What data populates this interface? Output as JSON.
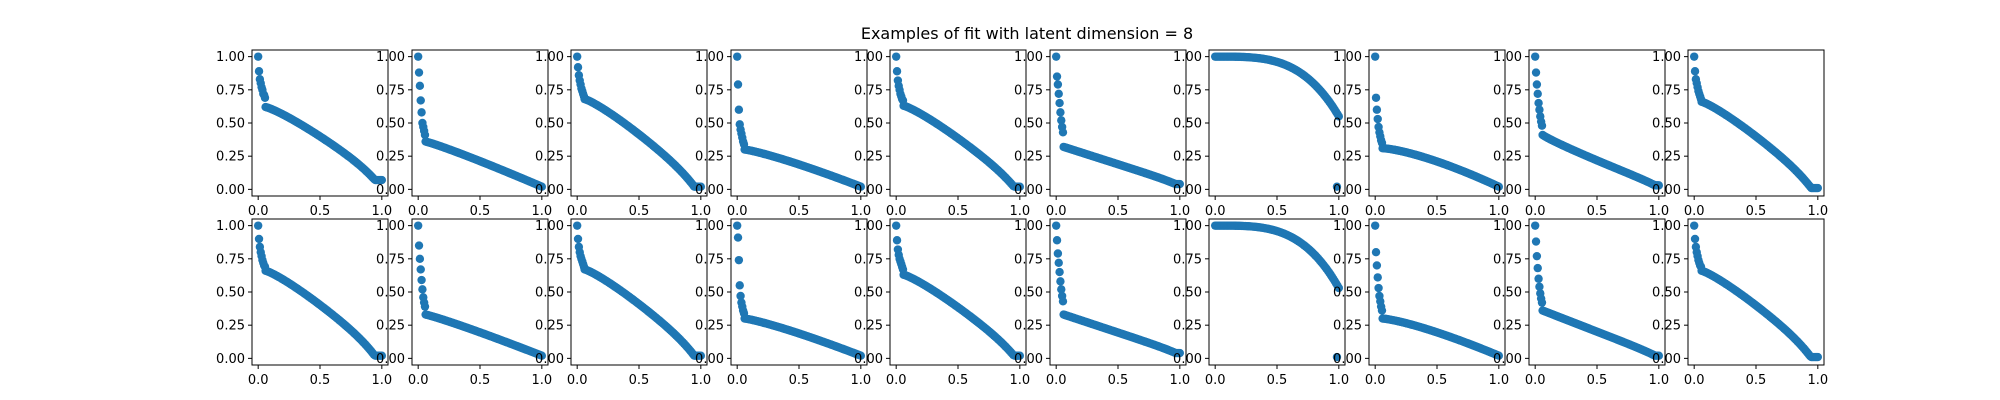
{
  "figure": {
    "title": "Examples of fit with latent dimension = 8",
    "marker_color": "#1f77b4",
    "background": "#ffffff"
  },
  "chart_data": {
    "type": "scatter",
    "layout": {
      "rows": 2,
      "cols": 10
    },
    "xlim": [
      -0.05,
      1.05
    ],
    "ylim": [
      -0.05,
      1.05
    ],
    "xticks": [
      0.0,
      0.5,
      1.0
    ],
    "xtick_labels": [
      "0.0",
      "0.5",
      "1.0"
    ],
    "yticks": [
      0.0,
      0.25,
      0.5,
      0.75,
      1.0
    ],
    "ytick_labels": [
      "0.00",
      "0.25",
      "0.50",
      "0.75",
      "1.00"
    ],
    "xlabel": "",
    "ylabel": "",
    "grid": false,
    "legend": "none",
    "subplots": [
      {
        "row": 1,
        "col": 1,
        "shape": "tail",
        "top": [
          1.0,
          0.89,
          0.83,
          0.8,
          0.77,
          0.75,
          0.72,
          0.71,
          0.69
        ],
        "s": 0.62,
        "e": 0.07,
        "k": 1.2,
        "f": 0.9
      },
      {
        "row": 1,
        "col": 2,
        "shape": "decay",
        "top": [
          1.0,
          0.88,
          0.78,
          0.67,
          0.58,
          0.5,
          0.47,
          0.44,
          0.41
        ],
        "s": 0.36,
        "e": 0.02,
        "k": 1.1,
        "f": 0
      },
      {
        "row": 1,
        "col": 3,
        "shape": "tail",
        "top": [
          1.0,
          0.92,
          0.86,
          0.82,
          0.79,
          0.76,
          0.74,
          0.72,
          0.7
        ],
        "s": 0.68,
        "e": 0.02,
        "k": 1.2,
        "f": 1.0
      },
      {
        "row": 1,
        "col": 4,
        "shape": "decay",
        "top": [
          1.0,
          0.79,
          0.6,
          0.49,
          0.45,
          0.42,
          0.39,
          0.36,
          0.34
        ],
        "s": 0.3,
        "e": 0.02,
        "k": 1.2,
        "f": 0
      },
      {
        "row": 1,
        "col": 5,
        "shape": "tail",
        "top": [
          1.0,
          0.89,
          0.82,
          0.78,
          0.75,
          0.72,
          0.7,
          0.68,
          0.67
        ],
        "s": 0.63,
        "e": 0.02,
        "k": 1.2,
        "f": 0.8
      },
      {
        "row": 1,
        "col": 6,
        "shape": "steep",
        "top": [
          1.0,
          0.85,
          0.79,
          0.72,
          0.65,
          0.58,
          0.52,
          0.47,
          0.43
        ],
        "s": 0.32,
        "e": 0.04,
        "k": 1.0,
        "f": 0.2
      },
      {
        "row": 1,
        "col": 7,
        "shape": "outlier",
        "top": [],
        "s": 1.0,
        "e": 0.55,
        "k": 3.5,
        "f": 0,
        "outlier": 0.02
      },
      {
        "row": 1,
        "col": 8,
        "shape": "decay",
        "top": [
          1.0,
          0.69,
          0.6,
          0.53,
          0.47,
          0.43,
          0.4,
          0.37,
          0.35
        ],
        "s": 0.31,
        "e": 0.02,
        "k": 1.4,
        "f": 0
      },
      {
        "row": 1,
        "col": 9,
        "shape": "decay",
        "top": [
          1.0,
          0.88,
          0.79,
          0.72,
          0.65,
          0.6,
          0.55,
          0.51,
          0.48
        ],
        "s": 0.41,
        "e": 0.03,
        "k": 0.9,
        "f": 0.2
      },
      {
        "row": 1,
        "col": 10,
        "shape": "tail",
        "top": [
          1.0,
          0.89,
          0.83,
          0.8,
          0.77,
          0.74,
          0.72,
          0.7,
          0.68
        ],
        "s": 0.66,
        "e": 0.01,
        "k": 1.2,
        "f": 1.0
      },
      {
        "row": 2,
        "col": 1,
        "shape": "tail",
        "top": [
          1.0,
          0.9,
          0.84,
          0.8,
          0.77,
          0.74,
          0.72,
          0.7,
          0.69
        ],
        "s": 0.66,
        "e": 0.02,
        "k": 1.2,
        "f": 1.1
      },
      {
        "row": 2,
        "col": 2,
        "shape": "decay",
        "top": [
          1.0,
          0.85,
          0.75,
          0.67,
          0.59,
          0.52,
          0.46,
          0.42,
          0.39
        ],
        "s": 0.33,
        "e": 0.02,
        "k": 1.1,
        "f": 0
      },
      {
        "row": 2,
        "col": 3,
        "shape": "tail",
        "top": [
          1.0,
          0.9,
          0.84,
          0.8,
          0.77,
          0.75,
          0.73,
          0.71,
          0.69
        ],
        "s": 0.67,
        "e": 0.02,
        "k": 1.2,
        "f": 1.0
      },
      {
        "row": 2,
        "col": 4,
        "shape": "decay",
        "top": [
          1.0,
          0.91,
          0.74,
          0.55,
          0.47,
          0.42,
          0.39,
          0.36,
          0.34
        ],
        "s": 0.3,
        "e": 0.02,
        "k": 1.2,
        "f": 0
      },
      {
        "row": 2,
        "col": 5,
        "shape": "tail",
        "top": [
          1.0,
          0.89,
          0.82,
          0.78,
          0.75,
          0.73,
          0.71,
          0.69,
          0.67
        ],
        "s": 0.63,
        "e": 0.02,
        "k": 1.2,
        "f": 0.8
      },
      {
        "row": 2,
        "col": 6,
        "shape": "steep",
        "top": [
          1.0,
          0.89,
          0.79,
          0.72,
          0.65,
          0.58,
          0.52,
          0.47,
          0.43
        ],
        "s": 0.33,
        "e": 0.04,
        "k": 1.0,
        "f": 0.2
      },
      {
        "row": 2,
        "col": 7,
        "shape": "outlier",
        "top": [],
        "s": 1.0,
        "e": 0.53,
        "k": 3.5,
        "f": 0,
        "outlier": 0.01
      },
      {
        "row": 2,
        "col": 8,
        "shape": "decay",
        "top": [
          1.0,
          0.8,
          0.7,
          0.61,
          0.53,
          0.47,
          0.43,
          0.39,
          0.36
        ],
        "s": 0.3,
        "e": 0.02,
        "k": 1.3,
        "f": 0
      },
      {
        "row": 2,
        "col": 9,
        "shape": "decay",
        "top": [
          1.0,
          0.88,
          0.77,
          0.68,
          0.6,
          0.54,
          0.49,
          0.45,
          0.42
        ],
        "s": 0.36,
        "e": 0.02,
        "k": 1.0,
        "f": 0.2
      },
      {
        "row": 2,
        "col": 10,
        "shape": "tail",
        "top": [
          1.0,
          0.9,
          0.84,
          0.8,
          0.77,
          0.74,
          0.72,
          0.7,
          0.69
        ],
        "s": 0.66,
        "e": 0.01,
        "k": 1.2,
        "f": 1.1
      }
    ]
  }
}
